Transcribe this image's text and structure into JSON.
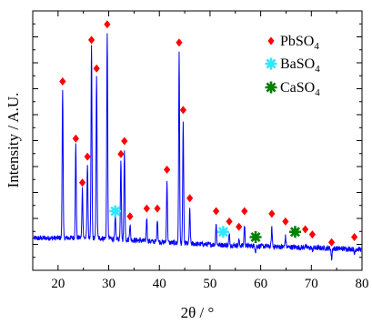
{
  "chart_data": {
    "type": "line",
    "title": "",
    "xlabel": "2θ / °",
    "ylabel": "Intensity / A.U.",
    "xlim": [
      15,
      80
    ],
    "xticks": [
      20,
      30,
      40,
      50,
      60,
      70,
      80
    ],
    "xtick_labels": [
      "20",
      "30",
      "40",
      "50",
      "60",
      "70",
      "80"
    ],
    "ylim": [
      0,
      1
    ],
    "y_ticks_labeled": false,
    "grid": false,
    "legend_position": "top-right",
    "pattern": {
      "name": "XRD pattern",
      "color": "#0000ff",
      "baseline": 0.12,
      "peaks": [
        {
          "x": 20.9,
          "y": 0.7
        },
        {
          "x": 23.5,
          "y": 0.48
        },
        {
          "x": 24.8,
          "y": 0.31
        },
        {
          "x": 25.8,
          "y": 0.41
        },
        {
          "x": 26.6,
          "y": 0.86
        },
        {
          "x": 27.6,
          "y": 0.75
        },
        {
          "x": 29.7,
          "y": 0.92
        },
        {
          "x": 31.3,
          "y": 0.2
        },
        {
          "x": 32.4,
          "y": 0.42
        },
        {
          "x": 33.1,
          "y": 0.47
        },
        {
          "x": 34.2,
          "y": 0.18
        },
        {
          "x": 37.5,
          "y": 0.21
        },
        {
          "x": 39.6,
          "y": 0.21
        },
        {
          "x": 41.5,
          "y": 0.36
        },
        {
          "x": 43.9,
          "y": 0.85
        },
        {
          "x": 44.7,
          "y": 0.59
        },
        {
          "x": 46.0,
          "y": 0.25
        },
        {
          "x": 51.2,
          "y": 0.2
        },
        {
          "x": 53.8,
          "y": 0.16
        },
        {
          "x": 55.7,
          "y": 0.14
        },
        {
          "x": 56.8,
          "y": 0.2
        },
        {
          "x": 59.0,
          "y": 0.1
        },
        {
          "x": 62.2,
          "y": 0.19
        },
        {
          "x": 64.9,
          "y": 0.16
        },
        {
          "x": 66.8,
          "y": 0.12
        },
        {
          "x": 68.8,
          "y": 0.13
        },
        {
          "x": 70.2,
          "y": 0.11
        },
        {
          "x": 74.0,
          "y": 0.08
        },
        {
          "x": 78.5,
          "y": 0.1
        }
      ]
    },
    "markers": {
      "PbSO4": {
        "color": "#ff0000",
        "symbol": "diamond",
        "x": [
          20.9,
          23.5,
          24.8,
          25.8,
          26.6,
          27.6,
          29.7,
          32.4,
          33.1,
          34.2,
          37.5,
          39.6,
          41.5,
          43.9,
          44.7,
          46.0,
          51.2,
          53.8,
          55.7,
          56.8,
          62.2,
          64.9,
          68.8,
          70.2,
          74.0,
          78.5
        ]
      },
      "BaSO4": {
        "color": "#33e6ff",
        "symbol": "asterisk",
        "x": [
          31.3,
          52.6
        ]
      },
      "CaSO4": {
        "color": "#008000",
        "symbol": "asterisk",
        "x": [
          59.0,
          66.8
        ]
      }
    },
    "legend": [
      {
        "formula": "PbSO",
        "subscript": "4",
        "color": "#ff0000",
        "symbol": "diamond"
      },
      {
        "formula": "BaSO",
        "subscript": "4",
        "color": "#33e6ff",
        "symbol": "asterisk"
      },
      {
        "formula": "CaSO",
        "subscript": "4",
        "color": "#008000",
        "symbol": "asterisk"
      }
    ]
  }
}
